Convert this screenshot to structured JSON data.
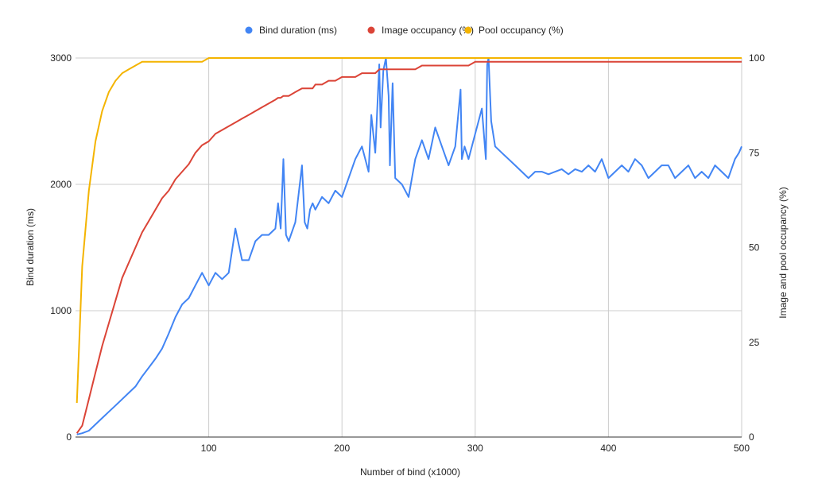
{
  "chart_data": {
    "type": "line",
    "x": [
      1,
      5,
      10,
      15,
      20,
      25,
      30,
      35,
      40,
      45,
      50,
      55,
      60,
      65,
      70,
      75,
      80,
      85,
      90,
      95,
      100,
      105,
      110,
      115,
      120,
      125,
      130,
      135,
      140,
      145,
      150,
      152,
      154,
      156,
      158,
      160,
      165,
      170,
      172,
      174,
      176,
      178,
      180,
      185,
      190,
      195,
      200,
      205,
      210,
      215,
      220,
      222,
      225,
      228,
      229,
      231,
      233,
      235,
      236,
      238,
      240,
      245,
      250,
      255,
      260,
      265,
      270,
      275,
      280,
      285,
      289,
      290,
      292,
      295,
      300,
      305,
      308,
      309,
      310,
      312,
      315,
      320,
      325,
      330,
      335,
      340,
      345,
      350,
      355,
      360,
      365,
      370,
      375,
      380,
      385,
      390,
      395,
      400,
      405,
      410,
      415,
      420,
      425,
      430,
      435,
      440,
      445,
      450,
      455,
      460,
      465,
      470,
      475,
      480,
      485,
      490,
      495,
      498,
      500
    ],
    "series": [
      {
        "name": "Bind duration (ms)",
        "axis": "left",
        "color": "#4285F4",
        "values": [
          20,
          30,
          50,
          100,
          150,
          200,
          250,
          300,
          350,
          400,
          480,
          550,
          620,
          700,
          820,
          950,
          1050,
          1100,
          1200,
          1300,
          1200,
          1300,
          1250,
          1300,
          1650,
          1400,
          1400,
          1550,
          1600,
          1600,
          1650,
          1850,
          1650,
          2200,
          1600,
          1550,
          1700,
          2150,
          1700,
          1650,
          1800,
          1850,
          1800,
          1900,
          1850,
          1950,
          1900,
          2050,
          2200,
          2300,
          2100,
          2550,
          2250,
          2950,
          2450,
          2900,
          3000,
          2700,
          2150,
          2800,
          2050,
          2000,
          1900,
          2200,
          2350,
          2200,
          2450,
          2300,
          2150,
          2300,
          2750,
          2200,
          2300,
          2200,
          2400,
          2600,
          2200,
          2950,
          3000,
          2500,
          2300,
          2250,
          2200,
          2150,
          2100,
          2050,
          2100,
          2100,
          2080,
          2100,
          2120,
          2080,
          2120,
          2100,
          2150,
          2100,
          2200,
          2050,
          2100,
          2150,
          2100,
          2200,
          2150,
          2050,
          2100,
          2150,
          2150,
          2050,
          2100,
          2150,
          2050,
          2100,
          2050,
          2150,
          2100,
          2050,
          2200,
          2250,
          2300
        ]
      },
      {
        "name": "Image occupancy (%)",
        "axis": "right",
        "color": "#DB4437",
        "values": [
          1,
          3,
          10,
          17,
          24,
          30,
          36,
          42,
          46,
          50,
          54,
          57,
          60,
          63,
          65,
          68,
          70,
          72,
          75,
          77,
          78,
          80,
          81,
          82,
          83,
          84,
          85,
          86,
          87,
          88,
          89,
          89.5,
          89.5,
          90,
          90,
          90,
          91,
          92,
          92,
          92,
          92,
          92,
          93,
          93,
          94,
          94,
          95,
          95,
          95,
          96,
          96,
          96,
          96,
          97,
          97,
          97,
          97,
          97,
          97,
          97,
          97,
          97,
          97,
          97,
          98,
          98,
          98,
          98,
          98,
          98,
          98,
          98,
          98,
          98,
          99,
          99,
          99,
          99,
          99,
          99,
          99,
          99,
          99,
          99,
          99,
          99,
          99,
          99,
          99,
          99,
          99,
          99,
          99,
          99,
          99,
          99,
          99,
          99,
          99,
          99,
          99,
          99,
          99,
          99,
          99,
          99,
          99,
          99,
          99,
          99,
          99,
          99,
          99,
          99,
          99,
          99,
          99,
          99,
          99
        ]
      },
      {
        "name": "Pool occupancy (%)",
        "axis": "right",
        "color": "#F4B400",
        "values": [
          9,
          45,
          65,
          78,
          86,
          91,
          94,
          96,
          97,
          98,
          99,
          99,
          99,
          99,
          99,
          99,
          99,
          99,
          99,
          99,
          100,
          100,
          100,
          100,
          100,
          100,
          100,
          100,
          100,
          100,
          100,
          100,
          100,
          100,
          100,
          100,
          100,
          100,
          100,
          100,
          100,
          100,
          100,
          100,
          100,
          100,
          100,
          100,
          100,
          100,
          100,
          100,
          100,
          100,
          100,
          100,
          100,
          100,
          100,
          100,
          100,
          100,
          100,
          100,
          100,
          100,
          100,
          100,
          100,
          100,
          100,
          100,
          100,
          100,
          100,
          100,
          100,
          100,
          100,
          100,
          100,
          100,
          100,
          100,
          100,
          100,
          100,
          100,
          100,
          100,
          100,
          100,
          100,
          100,
          100,
          100,
          100,
          100,
          100,
          100,
          100,
          100,
          100,
          100,
          100,
          100,
          100,
          100,
          100,
          100,
          100,
          100,
          100,
          100,
          100,
          100,
          100,
          100,
          100
        ]
      }
    ],
    "xlabel": "Number of bind (x1000)",
    "ylabel": "Bind duration (ms)",
    "y2label": "Image and pool occupancy (%)",
    "xlim": [
      0,
      500
    ],
    "ylim": [
      0,
      3000
    ],
    "y2lim": [
      0,
      100
    ],
    "xticks": [
      "100",
      "200",
      "300",
      "400",
      "500"
    ],
    "xtick_values": [
      100,
      200,
      300,
      400,
      500
    ],
    "yticks": [
      "0",
      "1000",
      "2000",
      "3000"
    ],
    "ytick_values": [
      0,
      1000,
      2000,
      3000
    ],
    "y2ticks": [
      "0",
      "25",
      "50",
      "75",
      "100"
    ],
    "y2tick_values": [
      0,
      25,
      50,
      75,
      100
    ],
    "grid": true,
    "legend_position": "top-center"
  }
}
